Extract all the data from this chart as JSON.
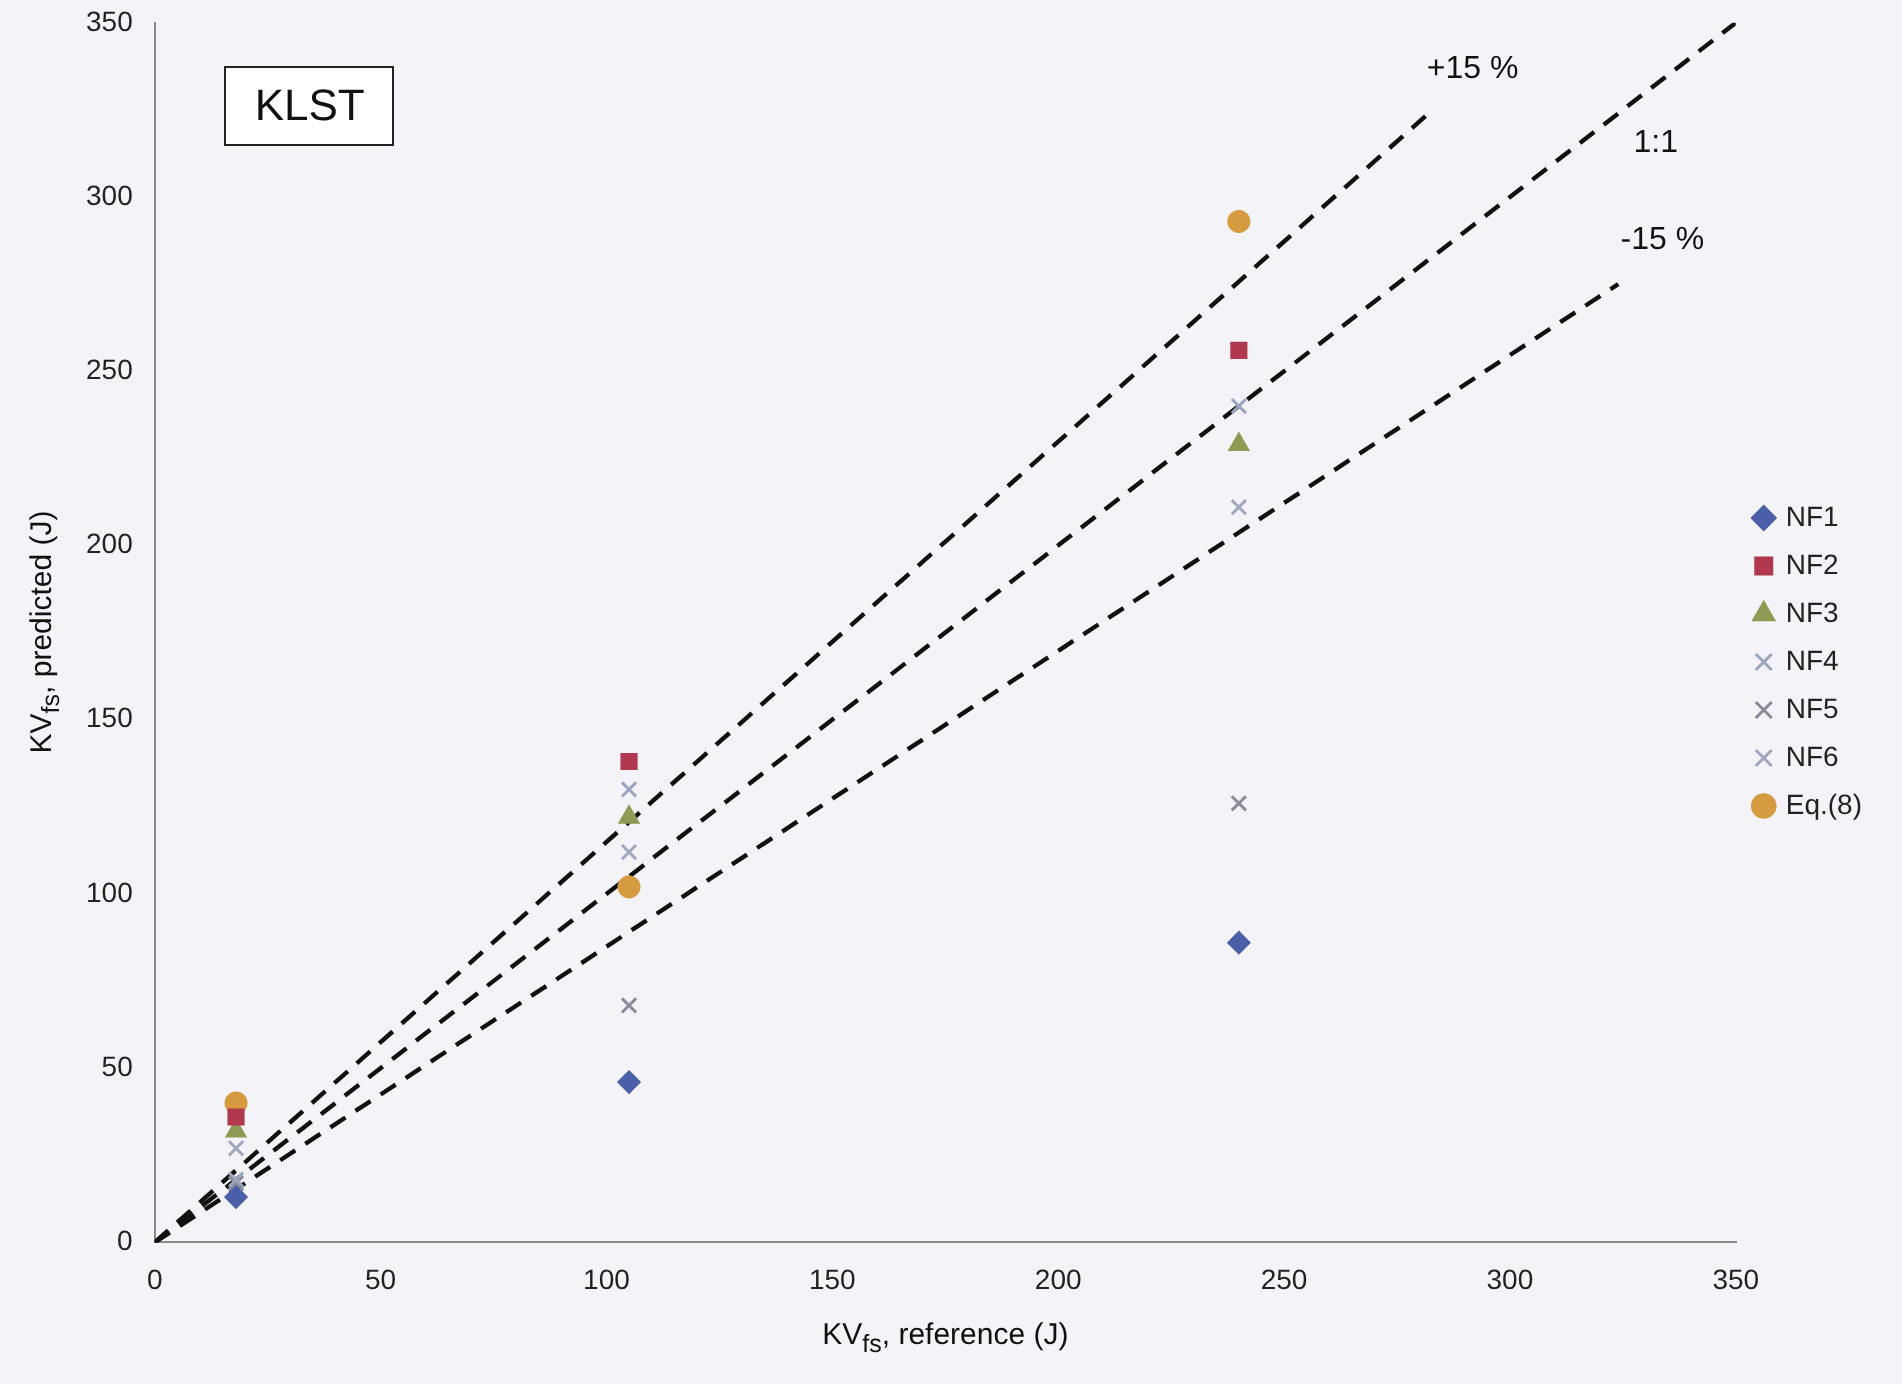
{
  "chart_data": {
    "type": "scatter",
    "xlabel": "KV$_{fs}$, reference (J)",
    "ylabel": "KV$_{fs}$, predicted (J)",
    "x": [
      18,
      105,
      240
    ],
    "series": [
      {
        "name": "NF1",
        "color": "#4a5fa8",
        "marker": "diamond",
        "values": [
          13,
          46,
          86
        ]
      },
      {
        "name": "NF2",
        "color": "#b0384f",
        "marker": "square",
        "values": [
          36,
          138,
          256
        ]
      },
      {
        "name": "NF3",
        "color": "#8f9a55",
        "marker": "triangle",
        "values": [
          32,
          122,
          229
        ]
      },
      {
        "name": "NF4",
        "color": "#9aa5c0",
        "marker": "cross",
        "values": [
          18,
          130,
          240
        ]
      },
      {
        "name": "NF5",
        "color": "#8a8a9a",
        "marker": "cross",
        "values": [
          17,
          68,
          126
        ]
      },
      {
        "name": "NF6",
        "color": "#a0a8c0",
        "marker": "cross",
        "values": [
          27,
          112,
          211
        ]
      },
      {
        "name": "Eq.(8)",
        "color": "#d69a40",
        "marker": "circle",
        "values": [
          40,
          102,
          293
        ]
      },
      {
        "type": "line",
        "color": "#111111",
        "line_style": "dashed",
        "x": [
          0,
          282
        ],
        "values": [
          0,
          324
        ]
      },
      {
        "type": "line",
        "color": "#111111",
        "line_style": "dashed",
        "x": [
          0,
          350
        ],
        "values": [
          0,
          350
        ]
      },
      {
        "type": "line",
        "color": "#111111",
        "line_style": "dashed",
        "x": [
          0,
          324
        ],
        "values": [
          0,
          275
        ]
      }
    ],
    "xlim": [
      0,
      350
    ],
    "xticks": [
      0,
      50,
      100,
      150,
      200,
      250,
      300,
      350
    ],
    "ylim": [
      0,
      350
    ],
    "yticks": [
      0,
      50,
      100,
      150,
      200,
      250,
      300,
      350
    ],
    "grid": false,
    "legend": "right",
    "annotations": [
      "KLST",
      "+15 %",
      "1:1",
      "-15 %"
    ]
  }
}
